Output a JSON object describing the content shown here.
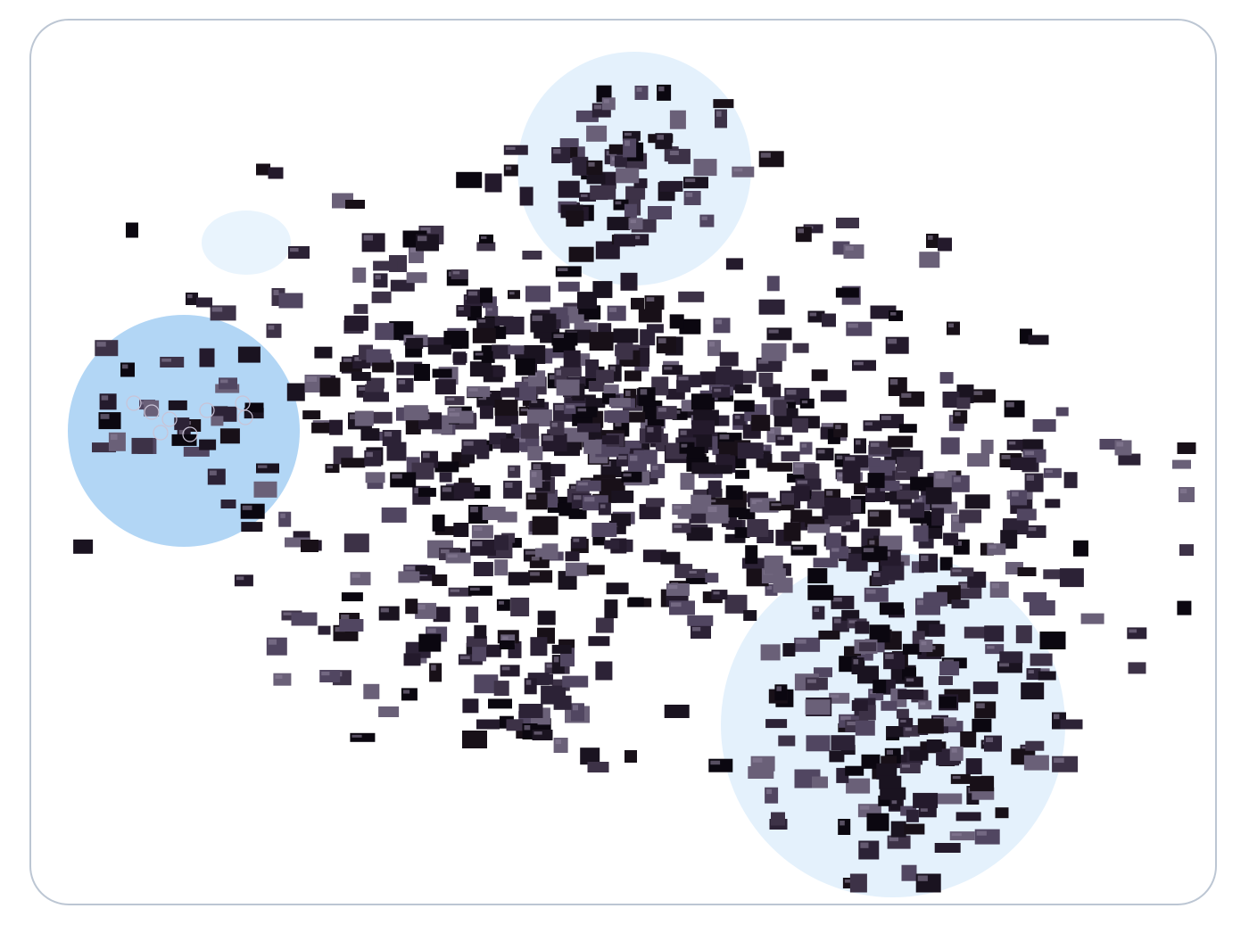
{
  "diagram": {
    "type": "image-embedding-scatter",
    "frame_color": "#bcc6d3",
    "thumbnail_palette": [
      "#0b0710",
      "#1a1320",
      "#2c2236",
      "#3d3247",
      "#514661",
      "#6a6078",
      "#181018",
      "#241a2c"
    ],
    "clusters": [
      {
        "id": "fireworks",
        "fill": "#b2d6f5",
        "opacity": 1.0
      },
      {
        "id": "night-sky",
        "fill": "#e4f1fc",
        "opacity": 1.0
      },
      {
        "id": "cathedrals",
        "fill": "#e4f1fc",
        "opacity": 1.0
      },
      {
        "id": "small-faint",
        "fill": "#e4f1fc",
        "opacity": 0.8
      }
    ]
  }
}
